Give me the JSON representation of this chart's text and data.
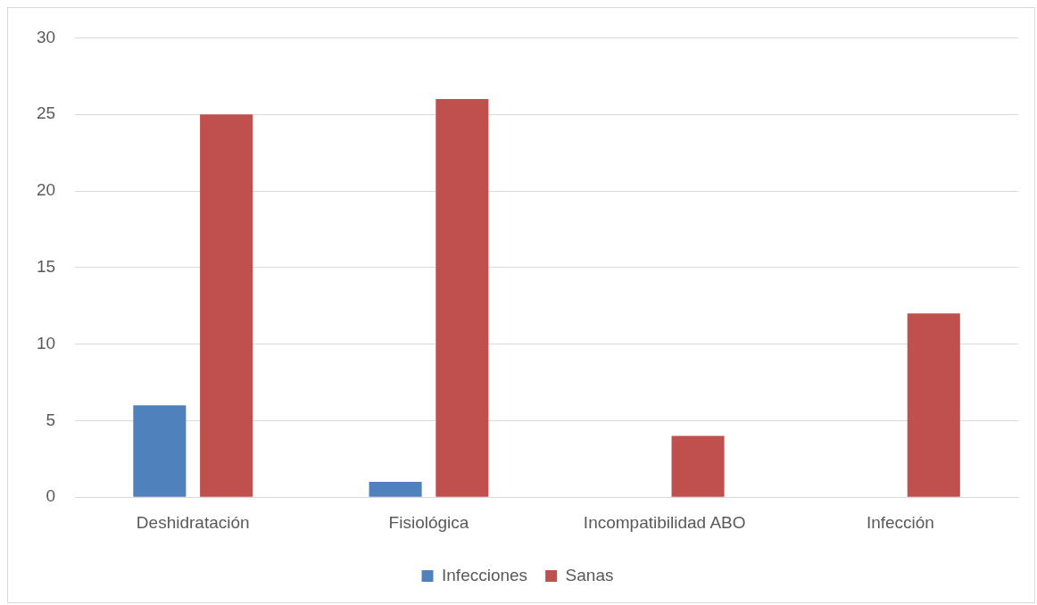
{
  "chart_data": {
    "type": "bar",
    "categories": [
      "Deshidratación",
      "Fisiológica",
      "Incompatibilidad ABO",
      "Infección"
    ],
    "series": [
      {
        "name": "Infecciones",
        "color": "#4f81bd",
        "values": [
          6,
          1,
          0,
          0
        ]
      },
      {
        "name": "Sanas",
        "color": "#c0504d",
        "values": [
          25,
          26,
          4,
          12
        ]
      }
    ],
    "ylim": [
      0,
      30
    ],
    "yticks": [
      0,
      5,
      10,
      15,
      20,
      25,
      30
    ],
    "grid": "y",
    "legend": "bottom"
  }
}
